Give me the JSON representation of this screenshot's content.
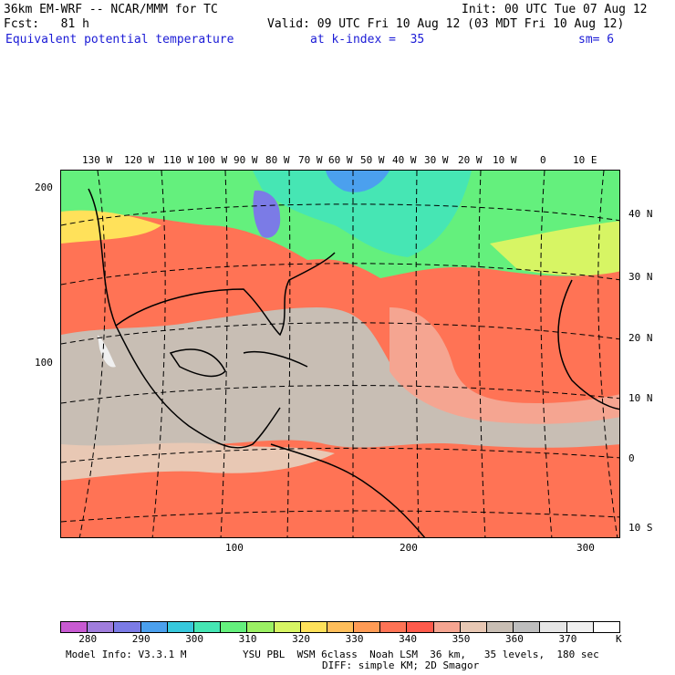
{
  "header": {
    "model_line": "36km EM-WRF -- NCAR/MMM for TC",
    "init_line": "Init: 00 UTC Tue 07 Aug 12",
    "fcst_line": "Fcst:   81 h",
    "valid_line": "Valid: 09 UTC Fri 10 Aug 12 (03 MDT Fri 10 Aug 12)",
    "field_name": "Equivalent potential temperature",
    "level": "at k-index =  35",
    "smoothing": "sm= 6"
  },
  "map": {
    "lon_labels": [
      "130 W",
      "120 W",
      "110 W",
      "100 W",
      "90 W",
      "80 W",
      "70 W",
      "60 W",
      "50 W",
      "40 W",
      "30 W",
      "20 W",
      "10 W",
      "0",
      "10 E"
    ],
    "lat_labels": [
      "40 N",
      "30 N",
      "20 N",
      "10 N",
      "0",
      "10 S"
    ],
    "grid_y_labels": [
      "200",
      "100"
    ],
    "grid_x_labels": [
      "100",
      "200",
      "300"
    ]
  },
  "colorbar": {
    "labels": [
      "280",
      "290",
      "300",
      "310",
      "320",
      "330",
      "340",
      "350",
      "360",
      "370"
    ],
    "unit": "K",
    "colors": [
      "#c85ad2",
      "#a07ddc",
      "#7b7be6",
      "#4ba0ee",
      "#37c8dc",
      "#46e6b4",
      "#64f07d",
      "#9bf064",
      "#d7f564",
      "#ffe15a",
      "#ffbe5a",
      "#ff9b55",
      "#ff7355",
      "#ff5a4b",
      "#f5a591",
      "#e8c8b4",
      "#c8beb4",
      "#bebebe",
      "#e6e6e6",
      "#f0f0f0",
      "#ffffff"
    ]
  },
  "footer": {
    "model_info": "Model Info: V3.3.1 M",
    "physics": "YSU PBL  WSM 6class  Noah LSM  36 km,   35 levels,  180 sec",
    "diffusion": "DIFF: simple KM; 2D Smagor"
  }
}
